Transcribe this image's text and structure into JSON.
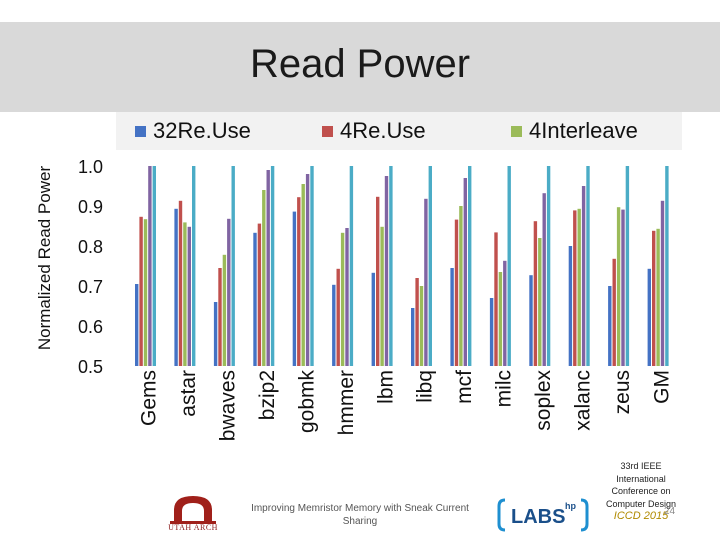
{
  "slide_title": "Read Power",
  "y_axis_label": "Normalized Read Power",
  "footer_caption": "Improving Memristor Memory with Sneak Current Sharing",
  "conference": {
    "line1": "33rd IEEE",
    "line2": "International",
    "line3": "Conference on",
    "line4": "Computer Design",
    "short": "ICCD 2015"
  },
  "slide_number": "24",
  "logos": {
    "utah": "UTAH ARCH",
    "labs": "LABS",
    "labs_sup": "hp"
  },
  "colors": {
    "title_band": "#d9d9d9",
    "legend_band": "#f2f2f2"
  },
  "chart_data": {
    "type": "bar",
    "title": "",
    "ylabel": "Normalized Read Power",
    "xlabel": "",
    "ylim": [
      0.5,
      1.0
    ],
    "yticks": [
      "0.5",
      "0.6",
      "0.7",
      "0.8",
      "0.9",
      "1.0"
    ],
    "grid": false,
    "legend_position": "top",
    "categories": [
      "Gems",
      "astar",
      "bwaves",
      "bzip2",
      "gobmk",
      "hmmer",
      "lbm",
      "libq",
      "mcf",
      "milc",
      "soplex",
      "xalanc",
      "zeus",
      "GM"
    ],
    "series": [
      {
        "color": "#4472c4",
        "values": [
          0.705,
          0.893,
          0.66,
          0.833,
          0.886,
          0.703,
          0.733,
          0.645,
          0.745,
          0.67,
          0.727,
          0.8,
          0.7,
          0.743
        ]
      },
      {
        "color": "#c0504d",
        "values": [
          0.873,
          0.913,
          0.745,
          0.856,
          0.922,
          0.743,
          0.923,
          0.72,
          0.866,
          0.834,
          0.862,
          0.889,
          0.768,
          0.838
        ]
      },
      {
        "color": "#9bbb59",
        "values": [
          0.867,
          0.859,
          0.778,
          0.94,
          0.955,
          0.833,
          0.848,
          0.7,
          0.9,
          0.735,
          0.82,
          0.893,
          0.897,
          0.843
        ]
      },
      {
        "color": "#8064a2",
        "values": [
          1.0,
          0.848,
          0.868,
          0.99,
          0.98,
          0.845,
          0.975,
          0.918,
          0.97,
          0.763,
          0.932,
          0.95,
          0.891,
          0.913
        ]
      },
      {
        "color": "#4bacc6",
        "values": [
          1.0,
          1.0,
          1.0,
          1.0,
          1.0,
          1.0,
          1.0,
          1.0,
          1.0,
          1.0,
          1.0,
          1.0,
          1.0,
          1.0
        ]
      }
    ],
    "legend": [
      {
        "label": "32Re.Use",
        "color": "#4472c4"
      },
      {
        "label": "4Re.Use",
        "color": "#c0504d"
      },
      {
        "label": "4Interleave",
        "color": "#9bbb59"
      }
    ]
  }
}
